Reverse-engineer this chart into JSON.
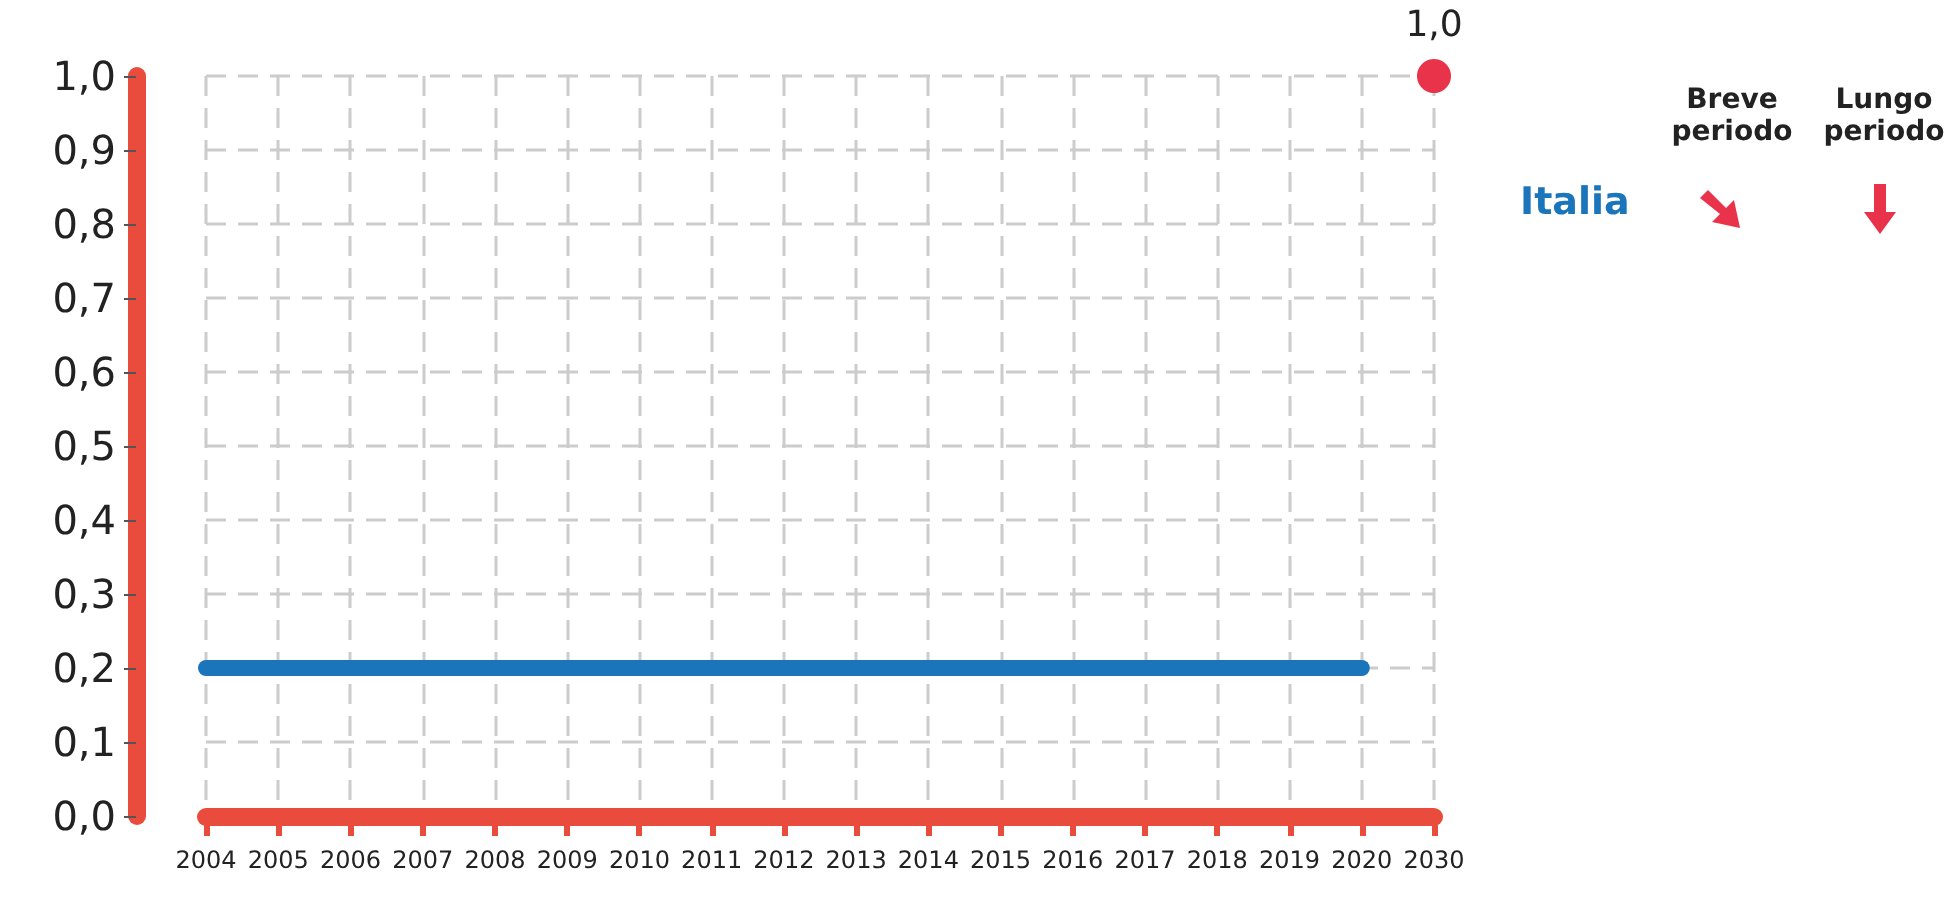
{
  "chart_data": {
    "type": "line",
    "categories": [
      "2004",
      "2005",
      "2006",
      "2007",
      "2008",
      "2009",
      "2010",
      "2011",
      "2012",
      "2013",
      "2014",
      "2015",
      "2016",
      "2017",
      "2018",
      "2019",
      "2020",
      "2030"
    ],
    "series": [
      {
        "name": "Italia",
        "color": "#1a75bb",
        "marker": "none",
        "values": [
          0.2,
          0.2,
          0.2,
          0.2,
          0.2,
          0.2,
          0.2,
          0.2,
          0.2,
          0.2,
          0.2,
          0.2,
          0.2,
          0.2,
          0.2,
          0.2,
          0.2,
          null
        ]
      },
      {
        "type": "scatter",
        "color": "#e8334a",
        "marker": "circle",
        "values": [
          null,
          null,
          null,
          null,
          null,
          null,
          null,
          null,
          null,
          null,
          null,
          null,
          null,
          null,
          null,
          null,
          null,
          1.0
        ],
        "value_labels": [
          null,
          null,
          null,
          null,
          null,
          null,
          null,
          null,
          null,
          null,
          null,
          null,
          null,
          null,
          null,
          null,
          null,
          "1,0"
        ]
      }
    ],
    "ylim": [
      0,
      1
    ],
    "yticks": [
      {
        "value": 0,
        "label": "0,0"
      },
      {
        "value": 0.1,
        "label": "0,1"
      },
      {
        "value": 0.2,
        "label": "0,2"
      },
      {
        "value": 0.3,
        "label": "0,3"
      },
      {
        "value": 0.4,
        "label": "0,4"
      },
      {
        "value": 0.5,
        "label": "0,5"
      },
      {
        "value": 0.6,
        "label": "0,6"
      },
      {
        "value": 0.7,
        "label": "0,7"
      },
      {
        "value": 0.8,
        "label": "0,8"
      },
      {
        "value": 0.9,
        "label": "0,9"
      },
      {
        "value": 1,
        "label": "1,0"
      }
    ],
    "grid": true,
    "legend": "right",
    "line_style": "solid",
    "annotations": [
      "Breve periodo",
      "Lungo periodo"
    ]
  }
}
